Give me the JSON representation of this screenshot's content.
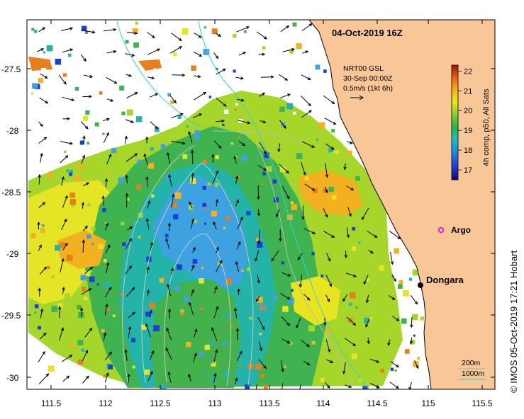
{
  "title": "04-Oct-2019 16Z",
  "credit": "© IMOS 05-Oct-2019 17:21 Hobart",
  "current_legend": {
    "line1": "NRT00 GSL",
    "line2": "30-Sep 00:00Z",
    "line3": "0.5m/s (1kt 6h)"
  },
  "colorbar": {
    "label": "4h comp, p50, All Sats",
    "ticks": [
      "17",
      "18",
      "19",
      "20",
      "21",
      "22"
    ],
    "min": 16.5,
    "max": 22.3
  },
  "depth_legend": {
    "a": "200m",
    "b": "1000m",
    "a_color": "#aaaaaa",
    "b_color": "#2fd1e0"
  },
  "x_ticks": [
    "111.5",
    "112",
    "112.5",
    "113",
    "113.5",
    "114",
    "114.5",
    "115",
    "115.5"
  ],
  "y_ticks": [
    "-27.5",
    "-28",
    "-28.5",
    "-29",
    "-29.5",
    "-30"
  ],
  "places": {
    "argo": "Argo",
    "dongara": "Dongara"
  },
  "colors": {
    "land": "#f8c697",
    "argo": "#e020e0",
    "isobath_1000": "#2fd1e0",
    "isobath_200": "#aaaaaa"
  },
  "map_data": {
    "lon_range": [
      111.3,
      115.6
    ],
    "lat_range": [
      -30.1,
      -27.1
    ],
    "dongara": [
      114.93,
      -29.25
    ],
    "argo": [
      115.1,
      -28.83
    ]
  }
}
